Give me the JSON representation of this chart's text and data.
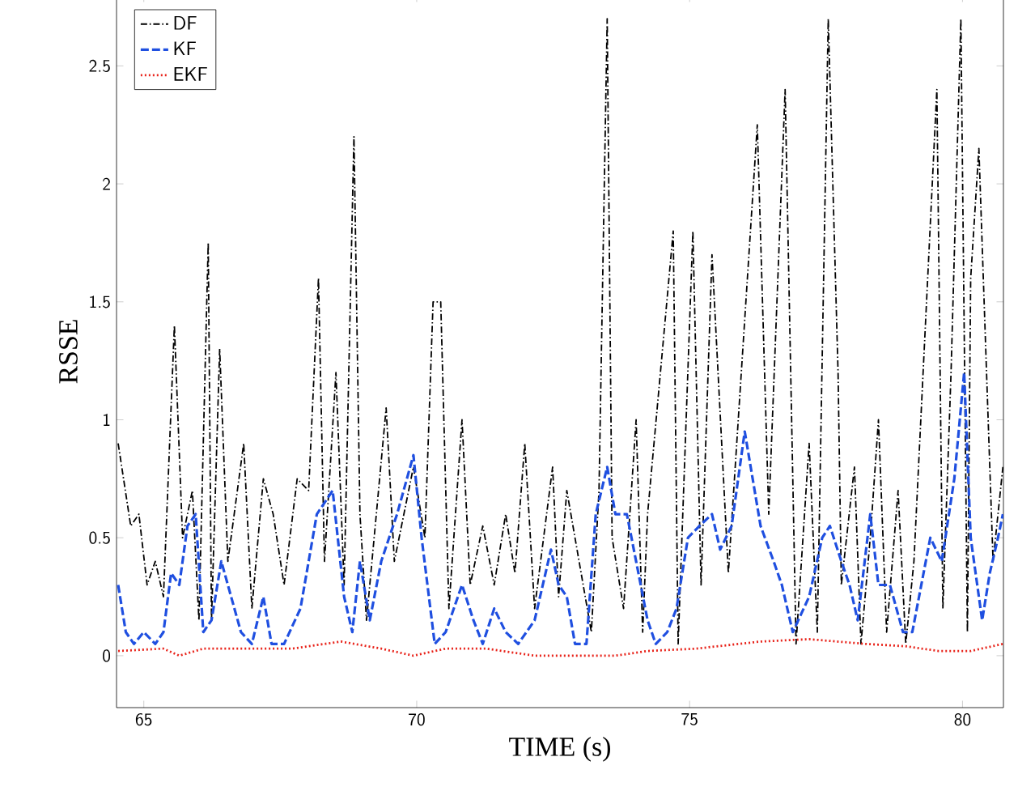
{
  "chart_data": {
    "type": "line",
    "xlabel": "TIME (s)",
    "ylabel": "RSSE",
    "xlim": [
      64.5,
      80.75
    ],
    "ylim": [
      -0.22,
      2.8
    ],
    "xticks": [
      65,
      70,
      75,
      80
    ],
    "yticks": [
      0,
      0.5,
      1,
      1.5,
      2,
      2.5
    ],
    "legend": "top left",
    "grid": false,
    "series": [
      {
        "name": "DF",
        "color": "#000000",
        "line_style": "dashdot",
        "x": [
          64.53,
          64.76,
          64.91,
          65.06,
          65.21,
          65.36,
          65.56,
          65.71,
          65.89,
          66.01,
          66.18,
          66.24,
          66.39,
          66.54,
          66.83,
          66.98,
          67.19,
          67.37,
          67.57,
          67.81,
          68.02,
          68.2,
          68.31,
          68.52,
          68.67,
          68.85,
          68.96,
          69.08,
          69.26,
          69.44,
          69.59,
          69.94,
          70.15,
          70.3,
          70.44,
          70.59,
          70.83,
          70.98,
          71.21,
          71.42,
          71.63,
          71.8,
          71.98,
          72.16,
          72.49,
          72.6,
          72.75,
          73.2,
          73.34,
          73.49,
          73.58,
          73.79,
          74.02,
          74.14,
          74.23,
          74.7,
          74.79,
          75.06,
          75.21,
          75.41,
          75.71,
          76.24,
          76.45,
          76.75,
          76.95,
          77.19,
          77.34,
          77.54,
          77.72,
          77.78,
          78.02,
          78.14,
          78.31,
          78.46,
          78.61,
          78.82,
          78.96,
          79.11,
          79.53,
          79.64,
          79.79,
          79.97,
          80.09,
          80.15,
          80.3,
          80.47,
          80.56,
          80.74
        ],
        "values": [
          0.9,
          0.55,
          0.6,
          0.3,
          0.4,
          0.25,
          1.4,
          0.5,
          0.7,
          0.15,
          1.75,
          0.15,
          1.3,
          0.4,
          0.9,
          0.2,
          0.75,
          0.6,
          0.3,
          0.75,
          0.7,
          1.6,
          0.4,
          1.2,
          0.3,
          2.2,
          0.6,
          0.15,
          0.6,
          1.05,
          0.4,
          0.8,
          0.5,
          1.5,
          1.5,
          0.2,
          1.0,
          0.3,
          0.55,
          0.3,
          0.6,
          0.35,
          0.9,
          0.2,
          0.8,
          0.25,
          0.7,
          0.1,
          0.7,
          2.7,
          0.5,
          0.2,
          1.0,
          0.1,
          0.6,
          1.8,
          0.05,
          1.8,
          0.3,
          1.7,
          0.35,
          2.25,
          0.6,
          2.4,
          0.05,
          0.9,
          0.1,
          2.7,
          1.2,
          0.3,
          0.8,
          0.05,
          0.5,
          1.0,
          0.1,
          0.7,
          0.05,
          0.4,
          2.4,
          0.2,
          1.2,
          2.7,
          0.1,
          1.6,
          2.15,
          1.0,
          0.4,
          0.8
        ]
      },
      {
        "name": "KF",
        "color": "#1f4fe0",
        "line_style": "dashed",
        "x": [
          64.53,
          64.67,
          64.82,
          65.0,
          65.21,
          65.36,
          65.5,
          65.65,
          65.8,
          65.95,
          66.09,
          66.24,
          66.42,
          66.54,
          66.78,
          66.98,
          67.19,
          67.34,
          67.57,
          67.87,
          68.17,
          68.46,
          68.67,
          68.82,
          68.96,
          69.14,
          69.35,
          69.64,
          69.94,
          70.09,
          70.33,
          70.53,
          70.83,
          71.04,
          71.21,
          71.42,
          71.63,
          71.86,
          72.16,
          72.46,
          72.6,
          72.75,
          72.9,
          73.11,
          73.28,
          73.49,
          73.64,
          73.85,
          74.02,
          74.23,
          74.38,
          74.59,
          74.76,
          74.97,
          75.18,
          75.41,
          75.56,
          75.77,
          76.01,
          76.3,
          76.54,
          76.69,
          76.89,
          77.19,
          77.43,
          77.57,
          77.78,
          77.93,
          78.08,
          78.31,
          78.46,
          78.67,
          78.91,
          79.08,
          79.41,
          79.62,
          79.85,
          80.03,
          80.15,
          80.36,
          80.5,
          80.65,
          80.74
        ],
        "values": [
          0.3,
          0.1,
          0.05,
          0.1,
          0.05,
          0.1,
          0.35,
          0.3,
          0.55,
          0.6,
          0.1,
          0.15,
          0.4,
          0.3,
          0.1,
          0.05,
          0.25,
          0.05,
          0.05,
          0.2,
          0.6,
          0.7,
          0.25,
          0.1,
          0.4,
          0.15,
          0.4,
          0.6,
          0.85,
          0.5,
          0.05,
          0.1,
          0.3,
          0.15,
          0.05,
          0.2,
          0.1,
          0.05,
          0.15,
          0.45,
          0.3,
          0.25,
          0.05,
          0.05,
          0.6,
          0.8,
          0.6,
          0.6,
          0.4,
          0.15,
          0.05,
          0.1,
          0.2,
          0.5,
          0.55,
          0.6,
          0.45,
          0.55,
          0.95,
          0.55,
          0.4,
          0.3,
          0.1,
          0.25,
          0.5,
          0.55,
          0.4,
          0.3,
          0.15,
          0.6,
          0.3,
          0.3,
          0.1,
          0.1,
          0.5,
          0.4,
          0.75,
          1.2,
          0.5,
          0.15,
          0.35,
          0.5,
          0.6
        ]
      },
      {
        "name": "EKF",
        "color": "#e8231a",
        "line_style": "dotted",
        "x": [
          64.53,
          65.36,
          65.65,
          66.09,
          66.83,
          67.72,
          68.61,
          69.35,
          69.94,
          70.53,
          71.27,
          72.16,
          72.75,
          73.64,
          74.23,
          75.12,
          76.3,
          77.19,
          78.22,
          78.96,
          79.56,
          80.15,
          80.74
        ],
        "values": [
          0.02,
          0.03,
          0.0,
          0.03,
          0.03,
          0.03,
          0.06,
          0.03,
          0.0,
          0.03,
          0.03,
          0.0,
          0.0,
          0.0,
          0.02,
          0.03,
          0.06,
          0.07,
          0.05,
          0.04,
          0.02,
          0.02,
          0.05
        ]
      }
    ]
  }
}
